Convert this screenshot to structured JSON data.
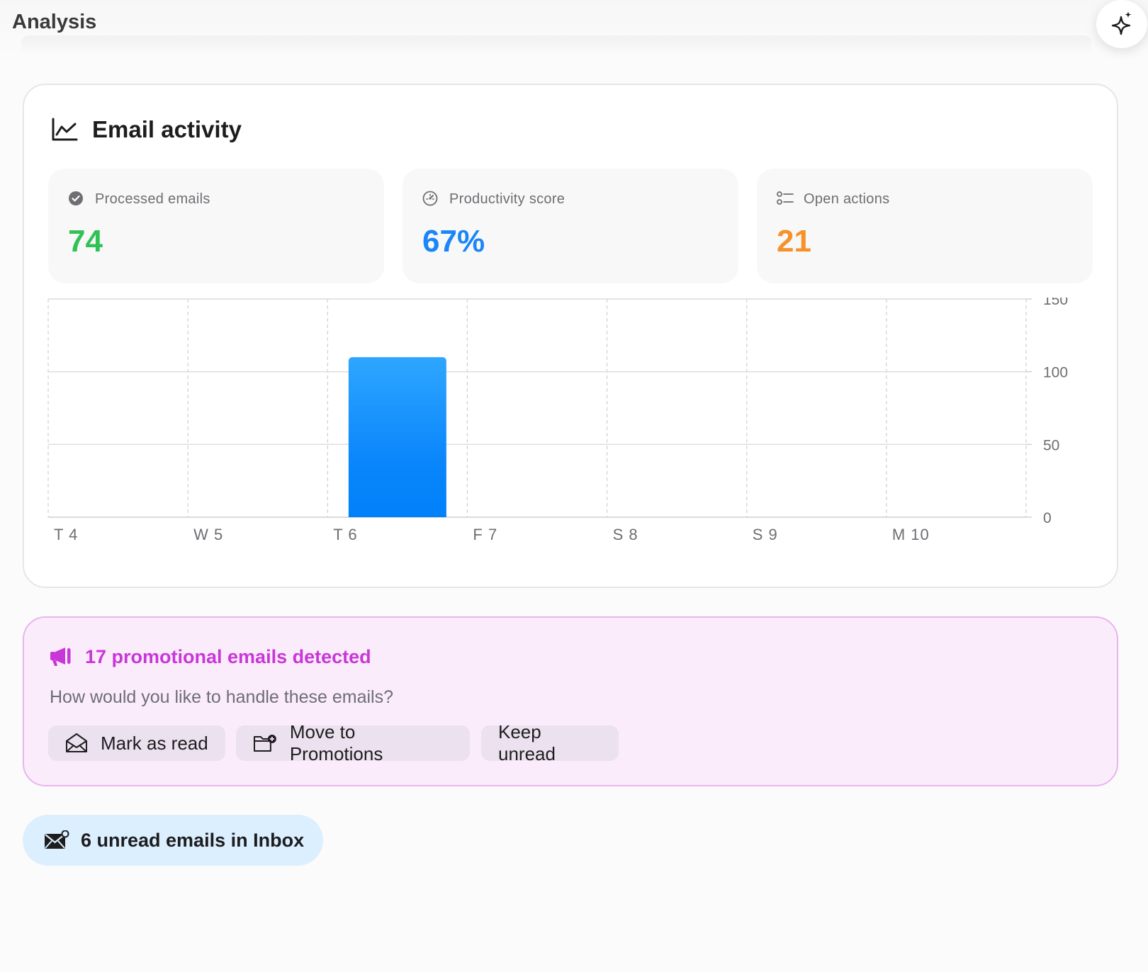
{
  "header": {
    "title": "Analysis",
    "assistant_icon": "sparkle-icon"
  },
  "activity": {
    "title": "Email activity",
    "icon": "line-chart-icon",
    "stats": [
      {
        "label": "Processed emails",
        "value": "74",
        "color": "#30c254",
        "icon": "check-circle-icon"
      },
      {
        "label": "Productivity score",
        "value": "67%",
        "color": "#1a86f7",
        "icon": "gauge-icon"
      },
      {
        "label": "Open actions",
        "value": "21",
        "color": "#f7912a",
        "icon": "checklist-icon"
      }
    ]
  },
  "chart_data": {
    "type": "bar",
    "categories": [
      "T 4",
      "W 5",
      "T 6",
      "F 7",
      "S 8",
      "S 9",
      "M 10"
    ],
    "values": [
      0,
      0,
      110,
      0,
      0,
      0,
      0
    ],
    "ylim": [
      0,
      150
    ],
    "yticks": [
      0,
      50,
      100,
      150
    ],
    "title": "",
    "xlabel": "",
    "ylabel": "",
    "grid": true,
    "bar_color": "#1a86f7"
  },
  "promo": {
    "title": "17 promotional emails detected",
    "question": "How would you like to handle these emails?",
    "buttons": {
      "mark_read": "Mark as read",
      "move_promotions": "Move to Promotions",
      "keep_unread": "Keep unread"
    },
    "accent": "#c837d8"
  },
  "inbox": {
    "unread_text": "6 unread emails in Inbox"
  }
}
